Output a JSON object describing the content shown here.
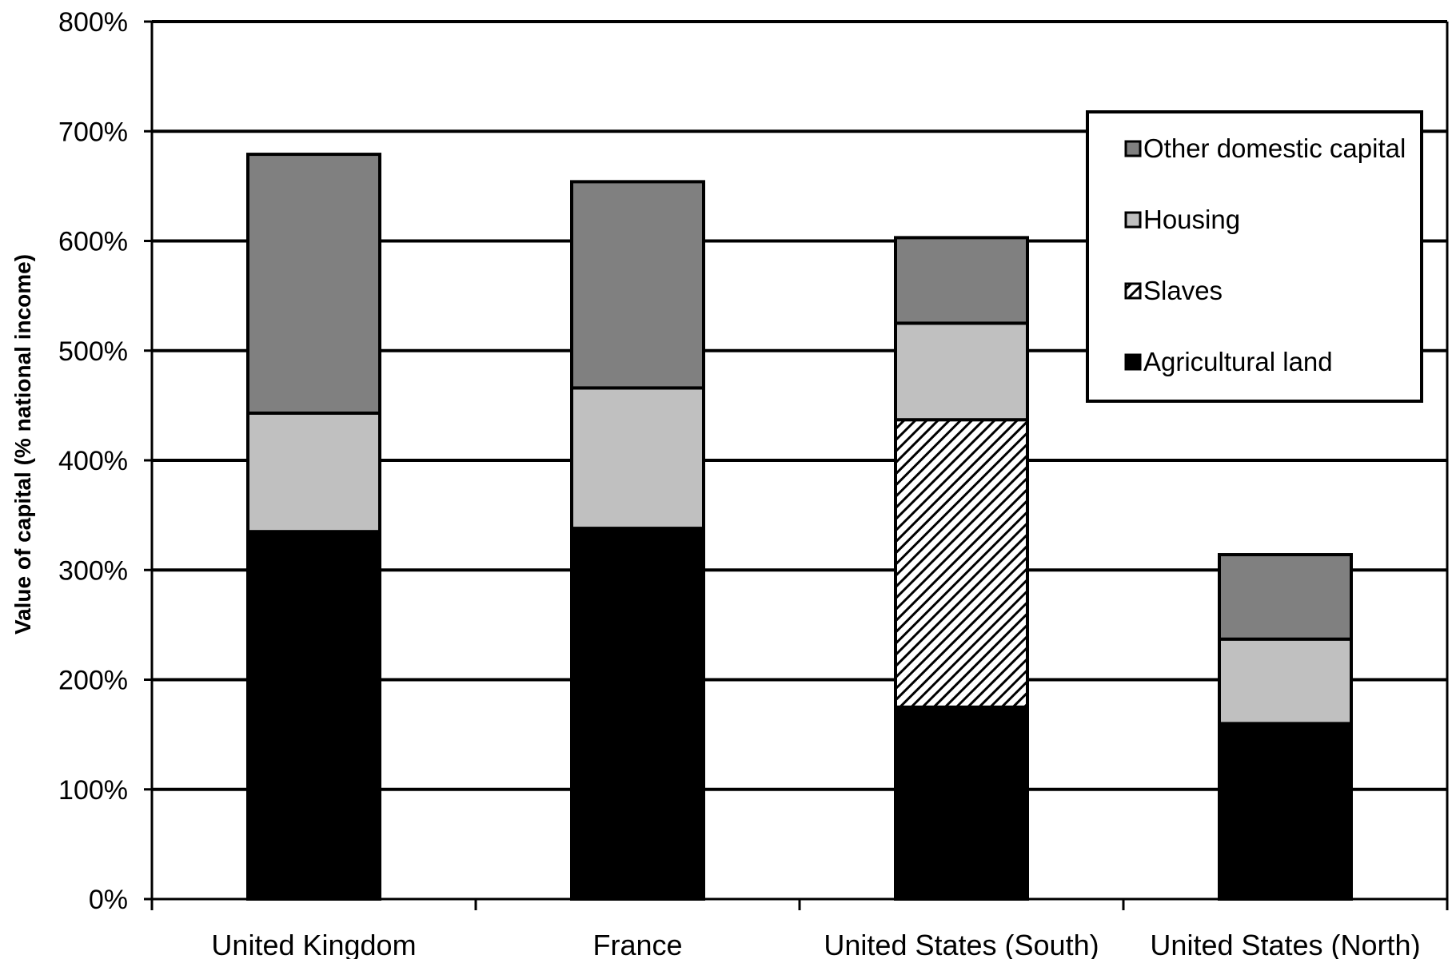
{
  "chart_data": {
    "type": "bar",
    "stacked": true,
    "title": "",
    "xlabel": "",
    "ylabel": "Value of capital (% national income)",
    "ylim": [
      0,
      800
    ],
    "yticks": [
      "0%",
      "100%",
      "200%",
      "300%",
      "400%",
      "500%",
      "600%",
      "700%",
      "800%"
    ],
    "grid": true,
    "legend_position": "top-right",
    "categories": [
      "United Kingdom",
      "France",
      "United States (South)",
      "United States (North)"
    ],
    "series": [
      {
        "name": "Agricultural land",
        "values": [
          335,
          338,
          175,
          160
        ],
        "color": "#000000",
        "pattern": "solid"
      },
      {
        "name": "Slaves",
        "values": [
          0,
          0,
          262,
          0
        ],
        "color": "#ffffff",
        "pattern": "hatch"
      },
      {
        "name": "Housing",
        "values": [
          108,
          128,
          88,
          77
        ],
        "color": "#c0c0c0",
        "pattern": "solid"
      },
      {
        "name": "Other domestic capital",
        "values": [
          236,
          188,
          78,
          77
        ],
        "color": "#808080",
        "pattern": "solid"
      }
    ],
    "legend_order": [
      "Other domestic capital",
      "Housing",
      "Slaves",
      "Agricultural land"
    ]
  }
}
